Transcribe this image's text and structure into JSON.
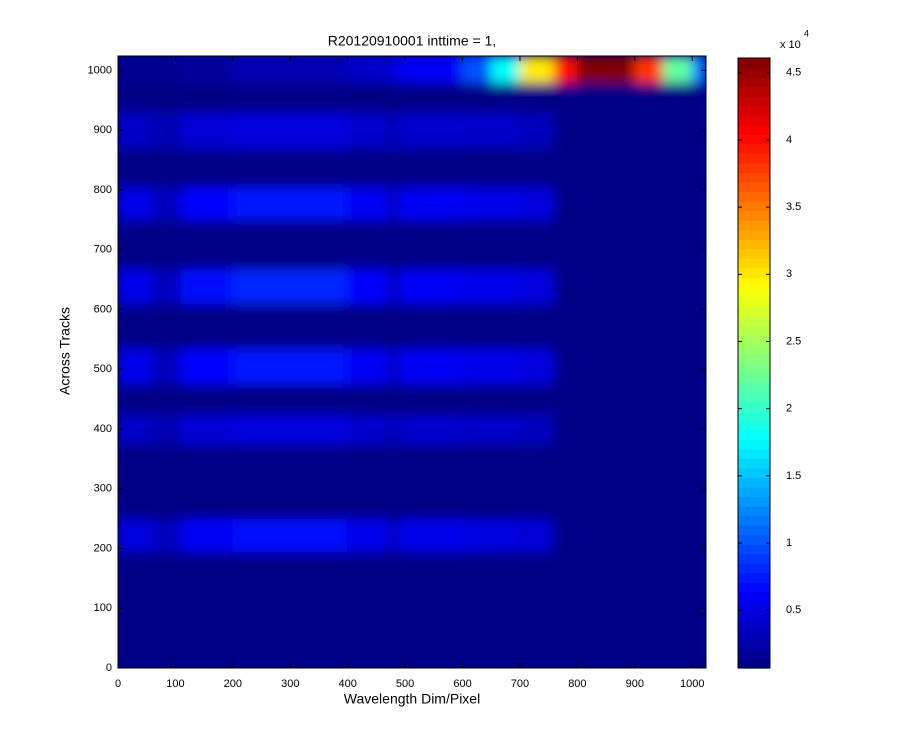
{
  "chart_data": {
    "type": "heatmap",
    "title": "R20120910001 inttime = 1,",
    "x_label": "Wavelength Dim/Pixel",
    "y_label": "Across Tracks",
    "colormap": "jet",
    "xlim": [
      0,
      1024
    ],
    "ylim": [
      0,
      1024
    ],
    "xticks": [
      0,
      100,
      200,
      300,
      400,
      500,
      600,
      700,
      800,
      900,
      1000
    ],
    "yticks": [
      0,
      100,
      200,
      300,
      400,
      500,
      600,
      700,
      800,
      900,
      1000
    ],
    "x_edges": [
      0,
      60,
      110,
      200,
      400,
      470,
      490,
      600,
      650,
      700,
      760,
      800,
      900,
      950,
      1000,
      1024
    ],
    "y_edges": [
      0,
      195,
      250,
      375,
      425,
      475,
      535,
      610,
      668,
      750,
      805,
      870,
      930,
      980,
      1024
    ],
    "values": [
      [
        1000,
        1000,
        1000,
        1000,
        1000,
        1000,
        1000,
        1000,
        1000,
        1000,
        1000,
        1000,
        1000,
        1000,
        1000
      ],
      [
        5000,
        3500,
        6000,
        7000,
        5500,
        3500,
        5500,
        5000,
        5000,
        4500,
        1000,
        1000,
        1000,
        1000,
        1000
      ],
      [
        1000,
        1000,
        1000,
        1000,
        1000,
        1000,
        1000,
        1000,
        1000,
        1000,
        1000,
        1000,
        1000,
        1000,
        1000
      ],
      [
        4000,
        3000,
        4500,
        5000,
        4200,
        3000,
        4200,
        4000,
        4000,
        3500,
        1000,
        1000,
        1000,
        1000,
        1000
      ],
      [
        1000,
        1000,
        1000,
        1000,
        1000,
        1000,
        1000,
        1000,
        1000,
        1000,
        1000,
        1000,
        1000,
        1000,
        1000
      ],
      [
        5500,
        3500,
        6500,
        7500,
        6000,
        3500,
        6000,
        5500,
        5500,
        5000,
        1000,
        1000,
        1000,
        1000,
        1000
      ],
      [
        1000,
        1000,
        1000,
        1000,
        1000,
        1000,
        1000,
        1000,
        1000,
        1000,
        1000,
        1000,
        1000,
        1000,
        1000
      ],
      [
        5500,
        3500,
        7000,
        8000,
        6500,
        3500,
        6000,
        5500,
        5500,
        5000,
        1000,
        1000,
        1000,
        1000,
        1000
      ],
      [
        1000,
        1000,
        1000,
        1000,
        1000,
        1000,
        1000,
        1000,
        1000,
        1000,
        1000,
        1000,
        1000,
        1000,
        1000
      ],
      [
        5500,
        3500,
        6500,
        7500,
        6000,
        3500,
        6000,
        5500,
        5500,
        5000,
        1000,
        1000,
        1000,
        1000,
        1000
      ],
      [
        1000,
        1000,
        1000,
        1000,
        1000,
        1000,
        1000,
        1000,
        1000,
        1000,
        1000,
        1000,
        1000,
        1000,
        1000
      ],
      [
        4000,
        3000,
        4500,
        5000,
        4200,
        3000,
        4200,
        4000,
        4000,
        3500,
        1000,
        1000,
        1000,
        1000,
        1000
      ],
      [
        1000,
        1000,
        1000,
        1000,
        1000,
        1000,
        1000,
        1000,
        1000,
        1000,
        1000,
        1000,
        1000,
        1000,
        1000
      ],
      [
        1500,
        1500,
        2000,
        3000,
        4000,
        4500,
        6000,
        10000,
        18000,
        30000,
        40000,
        46000,
        38000,
        22000,
        12000
      ]
    ],
    "clim": [
      700,
      46100
    ],
    "cticks": [
      {
        "value": 5000,
        "label": "0.5"
      },
      {
        "value": 10000,
        "label": "1"
      },
      {
        "value": 15000,
        "label": "1.5"
      },
      {
        "value": 20000,
        "label": "2"
      },
      {
        "value": 25000,
        "label": "2.5"
      },
      {
        "value": 30000,
        "label": "3"
      },
      {
        "value": 35000,
        "label": "3.5"
      },
      {
        "value": 40000,
        "label": "4"
      },
      {
        "value": 45000,
        "label": "4.5"
      }
    ],
    "colorbar_exponent": {
      "base": "x 10",
      "power": "4"
    }
  }
}
